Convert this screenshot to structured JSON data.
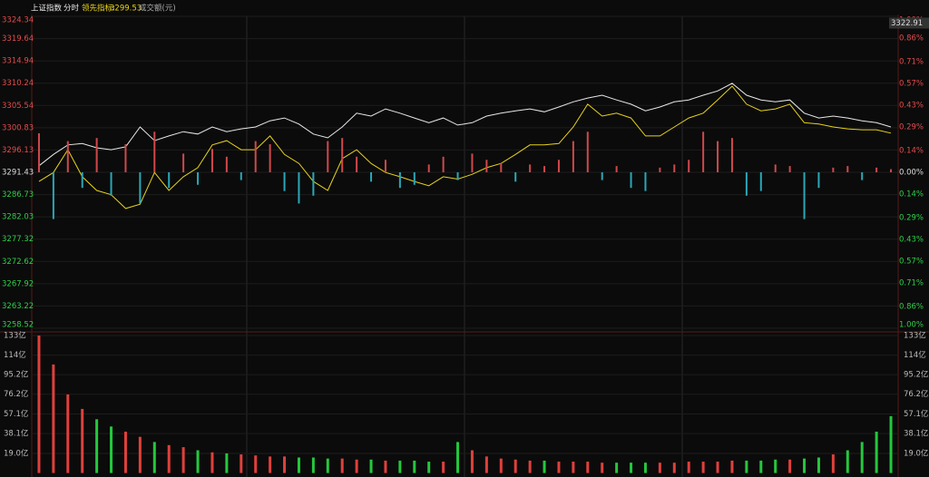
{
  "header": {
    "name": "上证指数",
    "period": "分时",
    "indicator_label": "领先指标:",
    "indicator_value": "3299.53",
    "volume_label": "成交额(元)"
  },
  "chart_data": [
    {
      "type": "line",
      "ylim": [
        3258.52,
        3324.34
      ],
      "yticks": [
        3324.34,
        3319.64,
        3314.94,
        3310.24,
        3305.54,
        3300.83,
        3296.13,
        3291.43,
        3286.73,
        3282.03,
        3277.32,
        3272.62,
        3267.92,
        3263.22,
        3258.52
      ],
      "y2lim": [
        -1,
        1
      ],
      "y2ticks": [
        {
          "value": 1,
          "label": "1.00%"
        },
        {
          "value": 0.86,
          "label": "0.86%"
        },
        {
          "value": 0.71,
          "label": "0.71%"
        },
        {
          "value": 0.57,
          "label": "0.57%"
        },
        {
          "value": 0.43,
          "label": "0.43%"
        },
        {
          "value": 0.29,
          "label": "0.29%"
        },
        {
          "value": 0.14,
          "label": "0.14%"
        },
        {
          "value": 0,
          "label": "0.00%"
        },
        {
          "value": -0.14,
          "label": "0.14%"
        },
        {
          "value": -0.29,
          "label": "0.29%"
        },
        {
          "value": -0.43,
          "label": "0.43%"
        },
        {
          "value": -0.57,
          "label": "0.57%"
        },
        {
          "value": -0.71,
          "label": "0.71%"
        },
        {
          "value": -0.86,
          "label": "0.86%"
        },
        {
          "value": -1,
          "label": "1.00%"
        }
      ],
      "cursor_value": 3322.91,
      "series": [
        {
          "color": "#e8e8e8",
          "values": [
            3292.8,
            3295.2,
            3297.2,
            3297.5,
            3296.6,
            3296.2,
            3296.8,
            3301.0,
            3298.1,
            3299.1,
            3300.0,
            3299.5,
            3301.0,
            3300.0,
            3300.6,
            3301.0,
            3302.3,
            3302.9,
            3301.6,
            3299.5,
            3298.7,
            3301.0,
            3303.9,
            3303.3,
            3304.8,
            3303.9,
            3302.9,
            3301.9,
            3302.9,
            3301.4,
            3301.9,
            3303.3,
            3303.9,
            3304.4,
            3304.8,
            3304.2,
            3305.2,
            3306.3,
            3307.1,
            3307.7,
            3306.7,
            3305.8,
            3304.4,
            3305.2,
            3306.3,
            3306.7,
            3307.7,
            3308.6,
            3310.2,
            3307.7,
            3306.7,
            3306.3,
            3306.7,
            3303.9,
            3302.9,
            3303.3,
            3302.9,
            3302.3,
            3301.9,
            3301.0
          ]
        },
        {
          "color": "#e6d21c",
          "values": [
            3289.5,
            3291.4,
            3296.2,
            3290.5,
            3287.6,
            3286.7,
            3283.8,
            3284.7,
            3291.4,
            3287.6,
            3290.5,
            3292.4,
            3297.2,
            3298.1,
            3296.2,
            3296.2,
            3299.1,
            3295.2,
            3293.3,
            3289.5,
            3287.6,
            3294.3,
            3296.2,
            3293.3,
            3291.4,
            3290.5,
            3289.5,
            3288.6,
            3290.5,
            3290.0,
            3291.0,
            3292.4,
            3293.3,
            3295.2,
            3297.2,
            3297.2,
            3297.5,
            3301.0,
            3305.8,
            3303.3,
            3303.9,
            3302.9,
            3299.1,
            3299.1,
            3301.0,
            3302.9,
            3303.9,
            3306.7,
            3309.6,
            3305.8,
            3304.4,
            3304.8,
            3305.8,
            3301.9,
            3301.6,
            3301.0,
            3300.6,
            3300.4,
            3300.4,
            3299.7
          ]
        },
        {
          "type": "bar",
          "axis": "y2",
          "up_color": "#d0484c",
          "down_color": "#2aa8b8",
          "values": [
            0.25,
            -0.3,
            0.2,
            -0.1,
            0.22,
            -0.15,
            0.18,
            -0.2,
            0.26,
            -0.1,
            0.12,
            -0.08,
            0.15,
            0.1,
            -0.05,
            0.2,
            0.18,
            -0.12,
            -0.2,
            -0.15,
            0.2,
            0.22,
            0.1,
            -0.06,
            0.08,
            -0.1,
            -0.08,
            0.05,
            0.1,
            -0.05,
            0.12,
            0.08,
            0.06,
            -0.06,
            0.05,
            0.04,
            0.08,
            0.2,
            0.26,
            -0.05,
            0.04,
            -0.1,
            -0.12,
            0.03,
            0.05,
            0.08,
            0.26,
            0.2,
            0.22,
            -0.15,
            -0.12,
            0.05,
            0.04,
            -0.3,
            -0.1,
            0.03,
            0.04,
            -0.05,
            0.03,
            0.02
          ]
        }
      ]
    },
    {
      "type": "bar",
      "ylim": [
        0,
        133
      ],
      "yticks": [
        {
          "value": 133,
          "label": "133亿"
        },
        {
          "value": 114,
          "label": "114亿"
        },
        {
          "value": 95.2,
          "label": "95.2亿"
        },
        {
          "value": 76.2,
          "label": "76.2亿"
        },
        {
          "value": 57.1,
          "label": "57.1亿"
        },
        {
          "value": 38.1,
          "label": "38.1亿"
        },
        {
          "value": 19.0,
          "label": "19.0亿"
        }
      ],
      "up_color": "#e0403c",
      "down_color": "#24c83c",
      "values": [
        133,
        105,
        76,
        62,
        52,
        45,
        40,
        35,
        30,
        27,
        25,
        22,
        20,
        19,
        18,
        17,
        16,
        16,
        15,
        15,
        14,
        14,
        13,
        13,
        12,
        12,
        12,
        11,
        11,
        30,
        22,
        16,
        14,
        13,
        12,
        12,
        11,
        11,
        11,
        10,
        10,
        10,
        10,
        10,
        10,
        11,
        11,
        11,
        12,
        12,
        12,
        13,
        13,
        14,
        15,
        18,
        22,
        30,
        40,
        55
      ]
    }
  ]
}
